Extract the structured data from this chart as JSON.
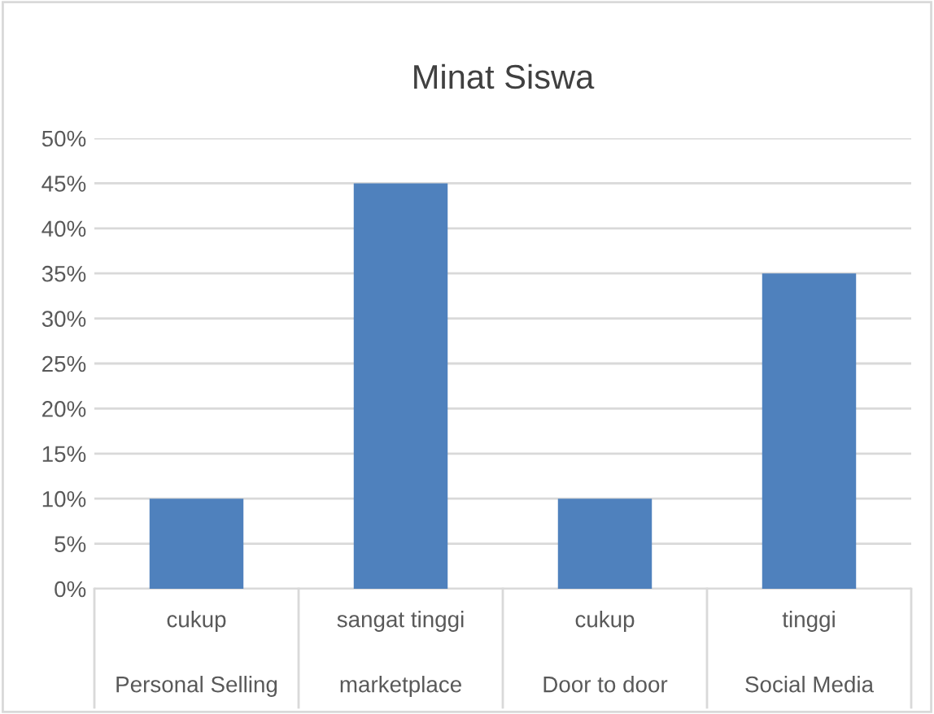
{
  "chart_data": {
    "type": "bar",
    "title": "Minat Siswa",
    "categories": [
      "cukup\nPersonal Selling",
      "sangat tinggi\nmarketplace",
      "cukup\nDoor to door",
      "tinggi\nSocial Media"
    ],
    "values": [
      10,
      45,
      10,
      35
    ],
    "color": "#4f81bd",
    "ylim": [
      0,
      50
    ],
    "yticks": [
      {
        "value": 0,
        "label": "0%"
      },
      {
        "value": 5,
        "label": "5%"
      },
      {
        "value": 10,
        "label": "10%"
      },
      {
        "value": 15,
        "label": "15%"
      },
      {
        "value": 20,
        "label": "20%"
      },
      {
        "value": 25,
        "label": "25%"
      },
      {
        "value": 30,
        "label": "30%"
      },
      {
        "value": 35,
        "label": "35%"
      },
      {
        "value": 40,
        "label": "40%"
      },
      {
        "value": 45,
        "label": "45%"
      },
      {
        "value": 50,
        "label": "50%"
      }
    ],
    "grid": "y",
    "legend": false
  }
}
